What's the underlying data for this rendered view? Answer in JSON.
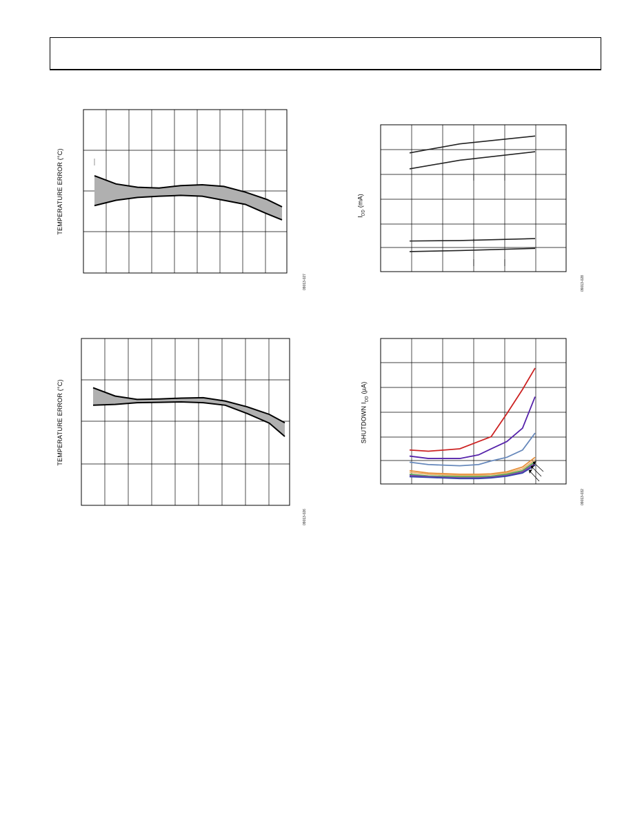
{
  "chart_data": [
    {
      "id": "temp-error-top-left",
      "type": "area",
      "ylabel": "TEMPERATURE ERROR (°C)",
      "figure_number": "09013-027",
      "grid": true,
      "x": [
        0,
        1,
        2,
        3,
        4,
        5,
        6,
        7,
        8,
        8.7
      ],
      "xlim": [
        0,
        9
      ],
      "ylim": [
        0,
        4
      ],
      "series": [
        {
          "values_upper": [
            2.38,
            2.18,
            2.1,
            2.08,
            2.14,
            2.16,
            2.12,
            1.98,
            1.8,
            1.62
          ]
        },
        {
          "values_lower": [
            1.65,
            1.78,
            1.85,
            1.88,
            1.9,
            1.88,
            1.78,
            1.68,
            1.45,
            1.3
          ]
        }
      ]
    },
    {
      "id": "temp-error-bottom-left",
      "type": "area",
      "ylabel": "TEMPERATURE ERROR (°C)",
      "figure_number": "09013-026",
      "grid": true,
      "x": [
        0,
        1,
        2,
        3,
        4,
        5,
        6,
        7,
        8,
        8.7
      ],
      "xlim": [
        0,
        9
      ],
      "ylim": [
        0,
        4
      ],
      "series": [
        {
          "values_upper": [
            2.82,
            2.62,
            2.54,
            2.55,
            2.57,
            2.58,
            2.5,
            2.36,
            2.18,
            1.98
          ]
        },
        {
          "values_lower": [
            2.4,
            2.42,
            2.46,
            2.47,
            2.48,
            2.46,
            2.4,
            2.2,
            1.97,
            1.65
          ]
        }
      ]
    },
    {
      "id": "idd-top-right",
      "type": "line",
      "ylabel": "IDD (mA)",
      "ylabel_main": "I",
      "ylabel_sub": "DD",
      "ylabel_rest": " (mA)",
      "figure_number": "09013-028",
      "grid": true,
      "x": [
        0.4,
        2.0,
        4.4
      ],
      "xlim": [
        0,
        5
      ],
      "ylim": [
        0,
        6
      ],
      "series": [
        {
          "values": [
            4.85,
            5.22,
            5.54
          ]
        },
        {
          "values": [
            4.2,
            4.55,
            4.9
          ]
        },
        {
          "values": [
            1.25,
            1.27,
            1.35
          ]
        },
        {
          "values": [
            0.82,
            0.86,
            0.95
          ]
        }
      ]
    },
    {
      "id": "shutdown-idd-bottom-right",
      "type": "line",
      "ylabel": "SHUTDOWN IDD (µA)",
      "ylabel_main": "SHUTDOWN I",
      "ylabel_sub": "DD",
      "ylabel_rest": " (µA)",
      "figure_number": "09013-032",
      "grid": true,
      "x": [
        0.4,
        1.0,
        2.0,
        2.6,
        3.0,
        3.5,
        4.0,
        4.4
      ],
      "xlim": [
        0,
        5
      ],
      "ylim": [
        0,
        6
      ],
      "series": [
        {
          "color": "#cc2222",
          "values": [
            1.4,
            1.35,
            1.45,
            1.75,
            1.95,
            2.9,
            3.9,
            4.78
          ]
        },
        {
          "color": "#5522aa",
          "values": [
            1.15,
            1.05,
            1.05,
            1.2,
            1.45,
            1.75,
            2.3,
            3.6
          ]
        },
        {
          "color": "#6688bb",
          "values": [
            0.9,
            0.8,
            0.75,
            0.8,
            0.95,
            1.1,
            1.4,
            2.1
          ]
        },
        {
          "color": "#e8903a",
          "values": [
            0.55,
            0.45,
            0.4,
            0.4,
            0.42,
            0.5,
            0.7,
            1.1
          ]
        },
        {
          "color": "#e8b070",
          "values": [
            0.48,
            0.4,
            0.35,
            0.35,
            0.38,
            0.45,
            0.62,
            1.0
          ]
        },
        {
          "color": "#55aa55",
          "values": [
            0.4,
            0.33,
            0.3,
            0.3,
            0.32,
            0.4,
            0.55,
            0.92
          ]
        },
        {
          "color": "#8844aa",
          "values": [
            0.35,
            0.3,
            0.25,
            0.25,
            0.28,
            0.35,
            0.5,
            0.85
          ]
        },
        {
          "color": "#3344aa",
          "values": [
            0.3,
            0.27,
            0.22,
            0.22,
            0.25,
            0.32,
            0.45,
            0.78
          ]
        }
      ]
    }
  ]
}
